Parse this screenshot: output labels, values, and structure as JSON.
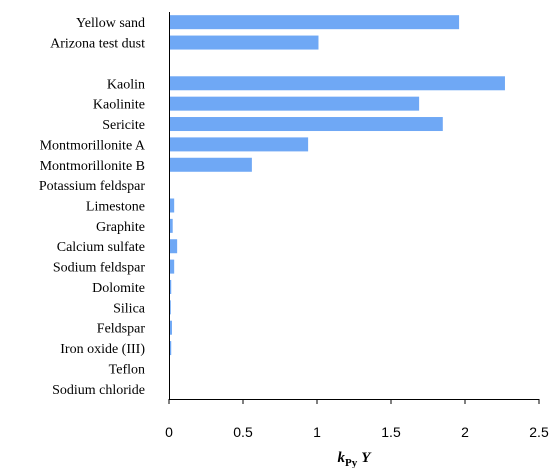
{
  "chart_data": {
    "type": "bar",
    "orientation": "horizontal",
    "categories": [
      "Yellow sand",
      "Arizona test dust",
      "",
      "Kaolin",
      "Kaolinite",
      "Sericite",
      "Montmorillonite A",
      "Montmorillonite B",
      "Potassium feldspar",
      "Limestone",
      "Graphite",
      "Calcium sulfate",
      "Sodium feldspar",
      "Dolomite",
      "Silica",
      "Feldspar",
      "Iron oxide (III)",
      "Teflon",
      "Sodium chloride"
    ],
    "values": [
      1.96,
      1.01,
      null,
      2.27,
      1.69,
      1.85,
      0.94,
      0.56,
      0,
      0.035,
      0.025,
      0.055,
      0.035,
      0.015,
      0.012,
      0.02,
      0.015,
      0.003,
      0.002
    ],
    "xlabel_main": "k",
    "xlabel_sub": "Py",
    "xlabel_tail": "Y",
    "xlim": [
      0,
      2.5
    ],
    "xticks": [
      "0",
      "0.5",
      "1",
      "1.5",
      "2",
      "2.5"
    ],
    "grid": false,
    "bar_color": "#6fa8f5"
  }
}
